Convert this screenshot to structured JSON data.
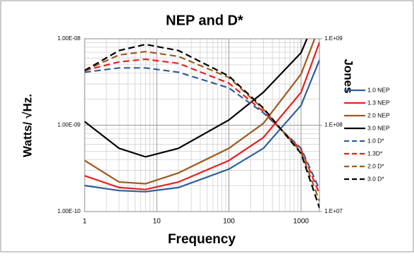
{
  "chart_data": {
    "type": "line",
    "title": "NEP and D*",
    "x_label": "Frequency",
    "y_label": "Watts/ √Hz.",
    "y2_label": "Jones",
    "x": [
      1,
      3,
      7,
      20,
      100,
      300,
      1000,
      1800
    ],
    "xlim": [
      1,
      1800
    ],
    "xticks": [
      1,
      10,
      100,
      1000
    ],
    "x_log": true,
    "ylim": [
      1e-10,
      1e-08
    ],
    "yticks": [
      {
        "value": 1e-08,
        "label": "1.00E-08"
      },
      {
        "value": 1e-09,
        "label": "1.00E-09"
      },
      {
        "value": 1e-10,
        "label": "1.00E-10"
      }
    ],
    "y_log": true,
    "y2lim": [
      10000000.0,
      1000000000.0
    ],
    "y2ticks": [
      {
        "value": 1000000000.0,
        "label": "1.E+09"
      },
      {
        "value": 100000000.0,
        "label": "1.E+08"
      },
      {
        "value": 10000000.0,
        "label": "1.E+07"
      }
    ],
    "y2_log": true,
    "grid": true,
    "minor_grid": true,
    "legend": "right",
    "series": [
      {
        "name": "1.0 NEP",
        "color": "#2e5d9e",
        "dash": false,
        "values": [
          2e-10,
          1.75e-10,
          1.7e-10,
          1.9e-10,
          3.1e-10,
          5.4e-10,
          1.7e-09,
          5.7e-09
        ]
      },
      {
        "name": "1.3 NEP",
        "color": "#e8201e",
        "dash": false,
        "values": [
          2.6e-10,
          1.9e-10,
          1.8e-10,
          2.2e-10,
          3.9e-10,
          7.2e-10,
          2.4e-09,
          9.1e-09
        ]
      },
      {
        "name": "2.0 NEP",
        "color": "#9c5a1e",
        "dash": false,
        "values": [
          3.9e-10,
          2.2e-10,
          2.1e-10,
          2.8e-10,
          5.4e-10,
          1.05e-09,
          3.9e-09,
          1.4e-08
        ]
      },
      {
        "name": "3.0 NEP",
        "color": "#000000",
        "dash": false,
        "values": [
          1.1e-09,
          5.4e-10,
          4.3e-10,
          5.4e-10,
          1.15e-09,
          2.4e-09,
          6.9e-09,
          2.2e-08
        ]
      },
      {
        "name": "1.0 D*",
        "color": "#2e5d9e",
        "dash": true,
        "axis": "y2",
        "values": [
          410000000.0,
          460000000.0,
          460000000.0,
          410000000.0,
          270000000.0,
          139000000.0,
          54000000.0,
          18000000.0
        ]
      },
      {
        "name": "1.3D*",
        "color": "#e8201e",
        "dash": true,
        "axis": "y2",
        "values": [
          430000000.0,
          540000000.0,
          580000000.0,
          520000000.0,
          306000000.0,
          144000000.0,
          52000000.0,
          16000000.0
        ]
      },
      {
        "name": "2.0 D*",
        "color": "#9c5a1e",
        "dash": true,
        "axis": "y2",
        "values": [
          430000000.0,
          650000000.0,
          710000000.0,
          625000000.0,
          356000000.0,
          153000000.0,
          49000000.0,
          13200000.0
        ]
      },
      {
        "name": "3.0 D*",
        "color": "#000000",
        "dash": true,
        "axis": "y2",
        "values": [
          430000000.0,
          730000000.0,
          860000000.0,
          730000000.0,
          370000000.0,
          158000000.0,
          47000000.0,
          11000000.0
        ]
      }
    ]
  }
}
